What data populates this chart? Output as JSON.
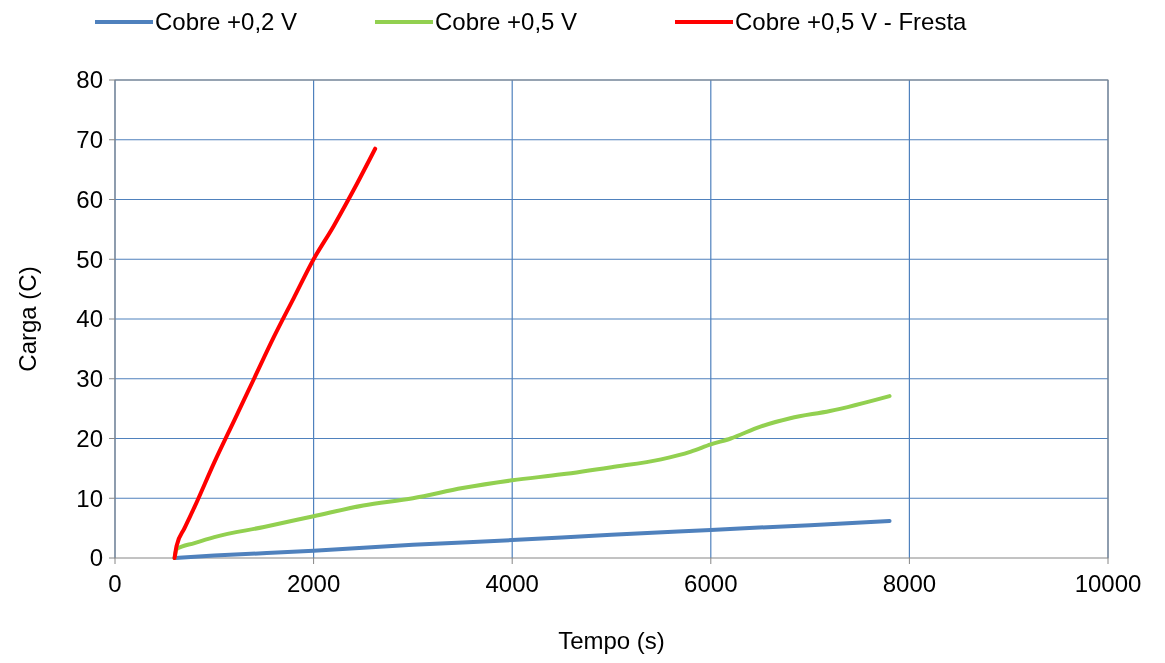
{
  "chart_data": {
    "type": "line",
    "xlabel": "Tempo (s)",
    "ylabel": "Carga (C)",
    "xlim": [
      0,
      10000
    ],
    "xticks": [
      0,
      2000,
      4000,
      6000,
      8000,
      10000
    ],
    "ylim": [
      0,
      80
    ],
    "yticks": [
      0,
      10,
      20,
      30,
      40,
      50,
      60,
      70,
      80
    ],
    "grid": true,
    "legend": "top",
    "line_style": "solid",
    "series": [
      {
        "name": "Cobre +0,2 V",
        "color": "#4f81bd",
        "x": [
          600,
          1000,
          2000,
          3000,
          4000,
          5000,
          6000,
          7000,
          7800
        ],
        "values": [
          0,
          0.4,
          1.2,
          2.2,
          3,
          3.9,
          4.7,
          5.5,
          6.2
        ]
      },
      {
        "name": "Cobre +0,5 V",
        "color": "#92d050",
        "x": [
          600,
          620,
          800,
          1000,
          1500,
          2000,
          2500,
          3000,
          3500,
          4000,
          4500,
          5000,
          5500,
          5800,
          6000,
          6200,
          6500,
          6800,
          7200,
          7800
        ],
        "values": [
          0,
          1.5,
          2.5,
          3.5,
          5.2,
          7,
          8.8,
          10,
          11.7,
          13,
          14,
          15.2,
          16.5,
          17.8,
          19,
          20,
          22,
          23.4,
          24.6,
          27.1
        ]
      },
      {
        "name": "Cobre +0,5 V - Fresta",
        "color": "#ff0000",
        "x": [
          600,
          620,
          700,
          800,
          1000,
          1200,
          1400,
          1600,
          1800,
          2000,
          2200,
          2400,
          2620
        ],
        "values": [
          0,
          2,
          5,
          8.5,
          16,
          23,
          30,
          37,
          43.5,
          50,
          55.5,
          61.5,
          68.5
        ]
      }
    ]
  }
}
